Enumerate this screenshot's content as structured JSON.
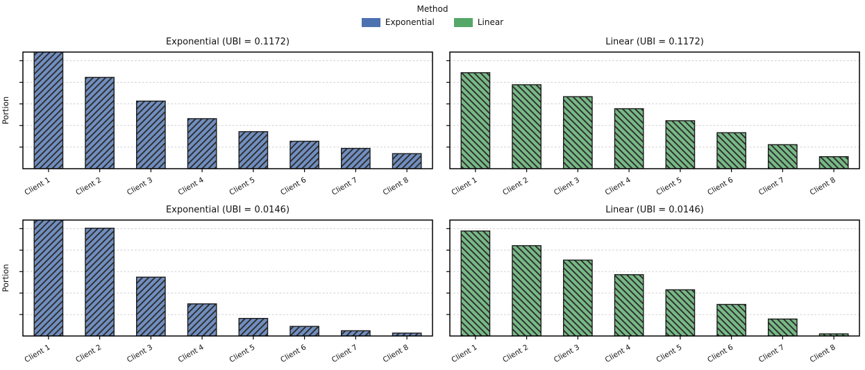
{
  "page": {
    "background": "#ffffff"
  },
  "legend": {
    "title": "Method",
    "entries": [
      {
        "id": "exponential",
        "label": "Exponential",
        "color": "#4c72b0"
      },
      {
        "id": "linear",
        "label": "Linear",
        "color": "#55a868"
      }
    ]
  },
  "chart_data": [
    {
      "id": "exponential-ubi-0-1172",
      "type": "bar",
      "title": "Exponential (UBI = 0.1172)",
      "ylabel": "Portion",
      "xlabel": "",
      "categories": [
        "Client 1",
        "Client 2",
        "Client 3",
        "Client 4",
        "Client 5",
        "Client 6",
        "Client 7",
        "Client 8"
      ],
      "values": [
        0.2857,
        0.2114,
        0.1565,
        0.1158,
        0.0857,
        0.0635,
        0.047,
        0.0348
      ],
      "series_name": "Exponential",
      "bar_fill": "#708ec0",
      "edge_color": "#1c1c1c",
      "hatch": "/",
      "hatch_color": "#2e2e2e",
      "ylim": [
        0,
        0.27
      ],
      "yticks": [
        0.05,
        0.1,
        0.15,
        0.2,
        0.25
      ],
      "ytick_labels_shown": false,
      "grid": true,
      "first_bar_clipped": true
    },
    {
      "id": "linear-ubi-0-1172",
      "type": "bar",
      "title": "Linear (UBI = 0.1172)",
      "ylabel": "",
      "xlabel": "",
      "categories": [
        "Client 1",
        "Client 2",
        "Client 3",
        "Client 4",
        "Client 5",
        "Client 6",
        "Client 7",
        "Client 8"
      ],
      "values": [
        0.2222,
        0.1944,
        0.1667,
        0.1389,
        0.1111,
        0.0833,
        0.0556,
        0.0278
      ],
      "series_name": "Linear",
      "bar_fill": "#77b986",
      "edge_color": "#1c1c1c",
      "hatch": "\\",
      "hatch_color": "#2e2e2e",
      "ylim": [
        0,
        0.27
      ],
      "yticks": [
        0.05,
        0.1,
        0.15,
        0.2,
        0.25
      ],
      "ytick_labels_shown": false,
      "grid": true,
      "first_bar_clipped": false
    },
    {
      "id": "exponential-ubi-0-0146",
      "type": "bar",
      "title": "Exponential (UBI = 0.0146)",
      "ylabel": "Portion",
      "xlabel": "",
      "categories": [
        "Client 1",
        "Client 2",
        "Client 3",
        "Client 4",
        "Client 5",
        "Client 6",
        "Client 7",
        "Client 8"
      ],
      "values": [
        0.4597,
        0.251,
        0.137,
        0.0748,
        0.0409,
        0.0223,
        0.0122,
        0.0067
      ],
      "series_name": "Exponential",
      "bar_fill": "#708ec0",
      "edge_color": "#1c1c1c",
      "hatch": "/",
      "hatch_color": "#2e2e2e",
      "ylim": [
        0,
        0.27
      ],
      "yticks": [
        0.05,
        0.1,
        0.15,
        0.2,
        0.25
      ],
      "ytick_labels_shown": false,
      "grid": true,
      "first_bar_clipped": true
    },
    {
      "id": "linear-ubi-0-0146",
      "type": "bar",
      "title": "Linear (UBI = 0.0146)",
      "ylabel": "",
      "xlabel": "",
      "categories": [
        "Client 1",
        "Client 2",
        "Client 3",
        "Client 4",
        "Client 5",
        "Client 6",
        "Client 7",
        "Client 8"
      ],
      "values": [
        0.2445,
        0.2104,
        0.1768,
        0.1428,
        0.1076,
        0.0735,
        0.0395,
        0.0049
      ],
      "series_name": "Linear",
      "bar_fill": "#77b986",
      "edge_color": "#1c1c1c",
      "hatch": "\\",
      "hatch_color": "#2e2e2e",
      "ylim": [
        0,
        0.27
      ],
      "yticks": [
        0.05,
        0.1,
        0.15,
        0.2,
        0.25
      ],
      "ytick_labels_shown": false,
      "grid": true,
      "first_bar_clipped": false
    }
  ]
}
